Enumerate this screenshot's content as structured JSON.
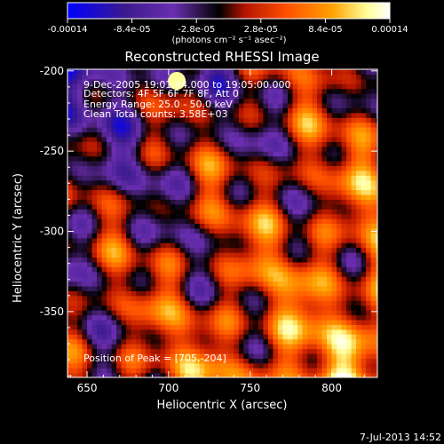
{
  "chart_data": {
    "type": "heatmap",
    "title": "Reconstructed RHESSI Image",
    "xlabel": "Heliocentric X (arcsec)",
    "ylabel": "Heliocentric Y (arcsec)",
    "xlim": [
      638,
      828
    ],
    "ylim": [
      -391,
      -199
    ],
    "xticks": [
      "650",
      "700",
      "750",
      "800"
    ],
    "xtick_values": [
      650,
      700,
      750,
      800
    ],
    "yticks": [
      "-200",
      "-250",
      "-300",
      "-350"
    ],
    "ytick_values": [
      -200,
      -250,
      -300,
      -350
    ],
    "colorbar": {
      "min": -0.00014,
      "max": 0.00014,
      "ticks": [
        "-0.00014",
        "-8.4e-05",
        "-2.8e-05",
        "2.8e-05",
        "8.4e-05",
        "0.00014"
      ],
      "label": "(photons cm⁻² s⁻¹ asec⁻²)",
      "colors": [
        "#0000ff",
        "#3c1a8c",
        "#6a2fb0",
        "#000000",
        "#b41400",
        "#ff5000",
        "#ffa000",
        "#ffff9a",
        "#ffffff"
      ]
    },
    "annotations": [
      "9-Dec-2005 19:01:44.000 to 19:05:00.000",
      "Detectors: 4F 5F 6F 7F 8F, Att 0",
      "Energy Range: 25.0 - 50.0 keV",
      "Clean    Total counts: 3.58E+03"
    ],
    "peak_text": "Position of Peak = [705,-204]",
    "peak": [
      705,
      -204
    ]
  },
  "footer": {
    "timestamp": "7-Jul-2013 14:52"
  },
  "colors": {
    "background": "#000000",
    "text": "#ffffff"
  }
}
